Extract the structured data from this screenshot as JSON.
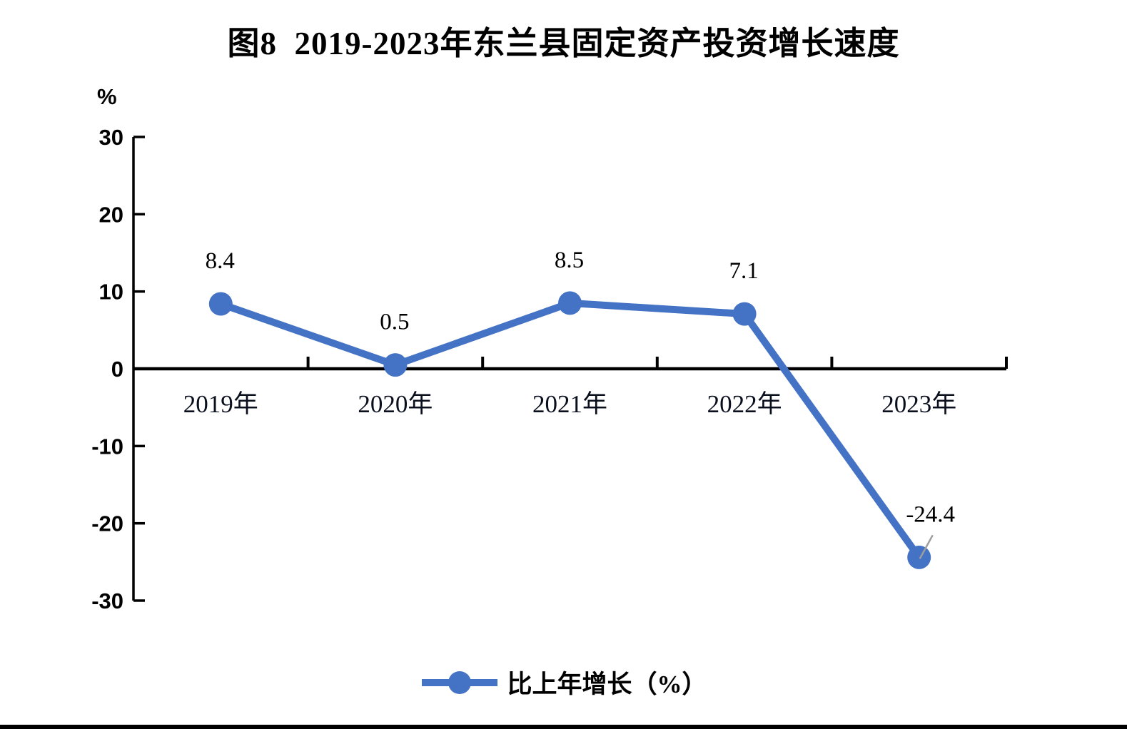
{
  "chart_data": {
    "type": "line",
    "title": "图8  2019-2023年东兰县固定资产投资增长速度",
    "unit_label": "%",
    "categories": [
      "2019年",
      "2020年",
      "2021年",
      "2022年",
      "2023年"
    ],
    "series": [
      {
        "name": "比上年增长（%）",
        "values": [
          8.4,
          0.5,
          8.5,
          7.1,
          -24.4
        ],
        "color": "#4472C4"
      }
    ],
    "data_labels": [
      "8.4",
      "0.5",
      "8.5",
      "7.1",
      "-24.4"
    ],
    "y_ticks": [
      30,
      20,
      10,
      0,
      -10,
      -20,
      -30
    ],
    "ylim": [
      -30,
      30
    ],
    "xlabel": "",
    "ylabel": "%",
    "grid": false,
    "legend": {
      "label": "比上年增长（%）",
      "position": "bottom"
    },
    "colors": {
      "line": "#4472C4",
      "axis": "#000000",
      "text": "#000000",
      "leader_line": "#9E9E9E"
    }
  }
}
